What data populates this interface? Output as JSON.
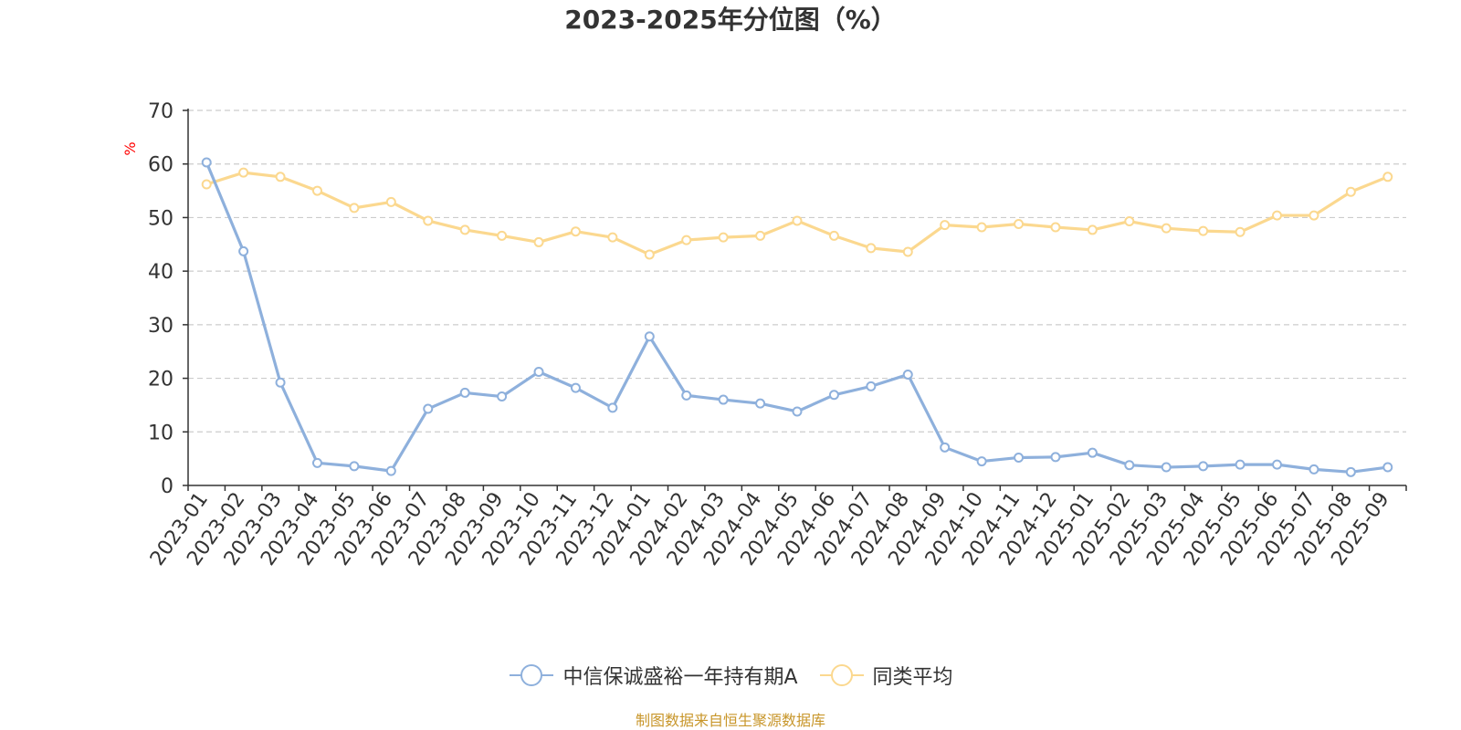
{
  "title": "2023-2025年分位图（%）",
  "source": "制图数据来自恒生聚源数据库",
  "chart_data": {
    "type": "line",
    "title": "2023-2025年分位图（%）",
    "ylabel": "%",
    "xlabel": "",
    "ylim": [
      0,
      70
    ],
    "yticks": [
      0,
      10,
      20,
      30,
      40,
      50,
      60,
      70
    ],
    "grid": true,
    "legend_position": "bottom",
    "x": [
      "2023-01",
      "2023-02",
      "2023-03",
      "2023-04",
      "2023-05",
      "2023-06",
      "2023-07",
      "2023-08",
      "2023-09",
      "2023-10",
      "2023-11",
      "2023-12",
      "2024-01",
      "2024-02",
      "2024-03",
      "2024-04",
      "2024-05",
      "2024-06",
      "2024-07",
      "2024-08",
      "2024-09",
      "2024-10",
      "2024-11",
      "2024-12",
      "2025-01",
      "2025-02",
      "2025-03",
      "2025-04",
      "2025-05",
      "2025-06",
      "2025-07",
      "2025-08",
      "2025-09"
    ],
    "series": [
      {
        "name": "中信保诚盛裕一年持有期A",
        "color": "#8eb0dc",
        "values": [
          60.3,
          43.7,
          19.2,
          4.2,
          3.6,
          2.7,
          14.3,
          17.3,
          16.6,
          21.2,
          18.2,
          14.5,
          27.8,
          16.8,
          16.0,
          15.3,
          13.8,
          16.9,
          18.5,
          20.7,
          7.1,
          4.5,
          5.2,
          5.3,
          6.1,
          3.8,
          3.4,
          3.6,
          3.9,
          3.9,
          3.0,
          2.5,
          3.4
        ]
      },
      {
        "name": "同类平均",
        "color": "#fbd88f",
        "values": [
          56.2,
          58.4,
          57.6,
          55.0,
          51.8,
          52.9,
          49.4,
          47.7,
          46.6,
          45.4,
          47.4,
          46.3,
          43.1,
          45.8,
          46.3,
          46.6,
          49.4,
          46.6,
          44.3,
          43.6,
          48.6,
          48.2,
          48.8,
          48.2,
          47.7,
          49.3,
          48.0,
          47.5,
          47.3,
          50.4,
          50.4,
          54.8,
          57.6
        ]
      }
    ]
  }
}
